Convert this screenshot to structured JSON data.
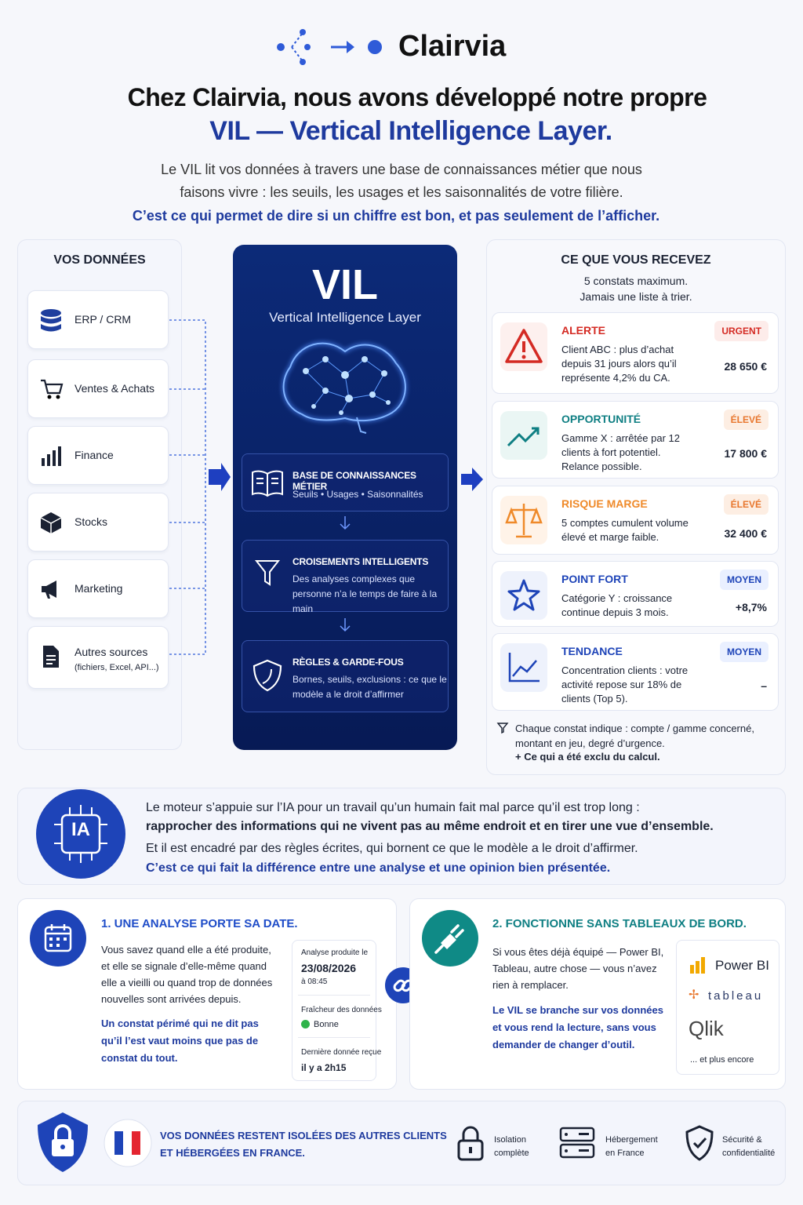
{
  "header": {
    "brand": "Clairvia",
    "title_line1": "Chez Clairvia, nous avons développé notre propre",
    "title_line2": "VIL — Vertical Intelligence Layer.",
    "intro_line1": "Le VIL lit vos données à travers une base de connaissances métier que nous",
    "intro_line2": "faisons vivre : les seuils, les usages et les saisonnalités de votre filière.",
    "intro_bold": "C’est ce qui permet de dire si un chiffre est bon, et pas seulement de l’afficher."
  },
  "sources": {
    "title": "VOS DONNÉES",
    "items": [
      {
        "label": "ERP / CRM"
      },
      {
        "label": "Ventes & Achats"
      },
      {
        "label": "Finance"
      },
      {
        "label": "Stocks"
      },
      {
        "label": "Marketing"
      },
      {
        "label": "Autres sources",
        "sub": "(fichiers, Excel, API...)"
      }
    ]
  },
  "vil": {
    "title": "VIL",
    "subtitle": "Vertical Intelligence Layer",
    "blocks": [
      {
        "title": "BASE DE CONNAISSANCES MÉTIER",
        "text": "Seuils • Usages • Saisonnalités"
      },
      {
        "title": "CROISEMENTS INTELLIGENTS",
        "text": "Des analyses complexes que personne n’a le temps de faire à la main"
      },
      {
        "title": "RÈGLES & GARDE-FOUS",
        "text": "Bornes, seuils, exclusions : ce que le modèle a le droit d’affirmer"
      }
    ]
  },
  "results": {
    "title": "CE QUE VOUS RECEVEZ",
    "subtitle_line1": "5 constats maximum.",
    "subtitle_line2": "Jamais une liste à trier.",
    "cards": [
      {
        "label": "ALERTE",
        "badge": "URGENT",
        "text": "Client ABC : plus d’achat depuis 31 jours alors qu’il représente 4,2% du CA.",
        "amount": "28 650 €"
      },
      {
        "label": "OPPORTUNITÉ",
        "badge": "ÉLEVÉ",
        "text": "Gamme X : arrêtée par 12 clients à fort potentiel. Relance possible.",
        "amount": "17 800 €"
      },
      {
        "label": "RISQUE MARGE",
        "badge": "ÉLEVÉ",
        "text": "5 comptes cumulent volume élevé et marge faible.",
        "amount": "32 400 €"
      },
      {
        "label": "POINT FORT",
        "badge": "MOYEN",
        "text": "Catégorie Y : croissance continue depuis 3 mois.",
        "amount": "+8,7%"
      },
      {
        "label": "TENDANCE",
        "badge": "MOYEN",
        "text": "Concentration clients : votre activité repose sur 18% de clients (Top 5).",
        "amount": "–"
      }
    ],
    "footnote": "Chaque constat indique : compte / gamme concerné, montant en jeu, degré d’urgence.",
    "footnote_bold": "+ Ce qui a été exclu du calcul."
  },
  "ia": {
    "badge": "IA",
    "line1": "Le moteur s’appuie sur l’IA pour un travail qu’un humain fait mal parce qu’il est trop long :",
    "line2": "rapprocher des informations qui ne vivent pas au même endroit et en tirer une vue d’ensemble.",
    "line3": "Et il est encadré par des règles écrites, qui bornent ce que le modèle a le droit d’affirmer.",
    "line4": "C’est ce qui fait la différence entre une analyse et une opinion bien présentée."
  },
  "date_card": {
    "title": "1. UNE ANALYSE PORTE SA DATE.",
    "text": "Vous savez quand elle a été produite, et elle se signale d’elle-même quand elle a vieilli ou quand trop de données nouvelles sont arrivées depuis.",
    "bold": "Un constat périmé qui ne dit pas qu’il l’est vaut moins que pas de constat du tout.",
    "widget": {
      "produced_label": "Analyse produite le",
      "date": "23/08/2026",
      "time": "à 08:45",
      "freshness_label": "Fraîcheur des données",
      "freshness": "Bonne",
      "last_label": "Dernière donnée reçue",
      "last": "il y a 2h15"
    }
  },
  "tools_card": {
    "title": "2. FONCTIONNE SANS TABLEAUX DE BORD.",
    "text": "Si vous êtes déjà équipé — Power BI, Tableau, autre chose — vous n’avez rien à remplacer.",
    "bold": "Le VIL se branche sur vos données et vous rend la lecture, sans vous demander de changer d’outil.",
    "logos": [
      "Power BI",
      "tableau",
      "Qlik"
    ],
    "more": "... et plus encore"
  },
  "security": {
    "text": "VOS DONNÉES RESTENT ISOLÉES DES AUTRES CLIENTS ET HÉBERGÉES EN FRANCE.",
    "features": [
      "Isolation complète",
      "Hébergement en France",
      "Sécurité & confidentialité"
    ]
  }
}
